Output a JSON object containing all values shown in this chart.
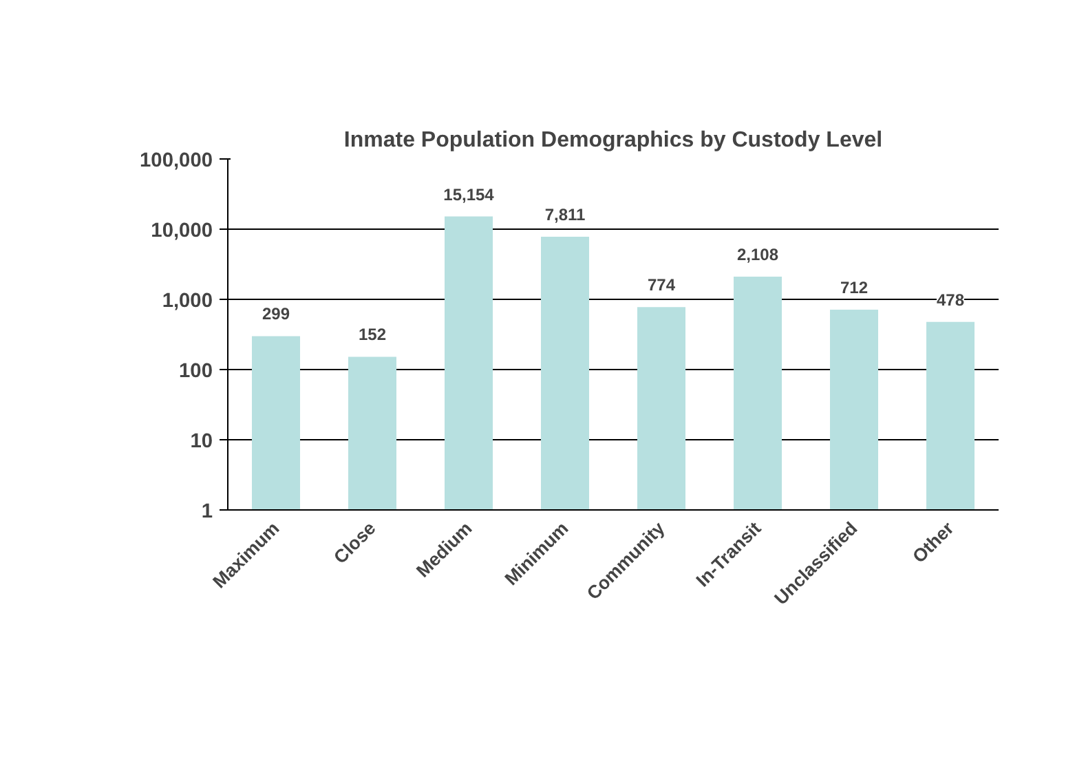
{
  "chart_data": {
    "type": "bar",
    "title": "Inmate Population Demographics by Custody Level",
    "categories": [
      "Maximum",
      "Close",
      "Medium",
      "Minimum",
      "Community",
      "In-Transit",
      "Unclassified",
      "Other"
    ],
    "values": [
      299,
      152,
      15154,
      7811,
      774,
      2108,
      712,
      478
    ],
    "value_labels": [
      "299",
      "152",
      "15,154",
      "7,811",
      "774",
      "2,108",
      "712",
      "478"
    ],
    "color": "#b7e0e0",
    "log": true,
    "ylim": [
      1,
      100000
    ],
    "yticks": [
      1,
      10,
      100,
      {
        "value": 1000,
        "label": "1,000"
      },
      {
        "value": 10000,
        "label": "10,000"
      },
      {
        "value": 100000,
        "label": "100,000"
      }
    ],
    "grid": "y"
  }
}
